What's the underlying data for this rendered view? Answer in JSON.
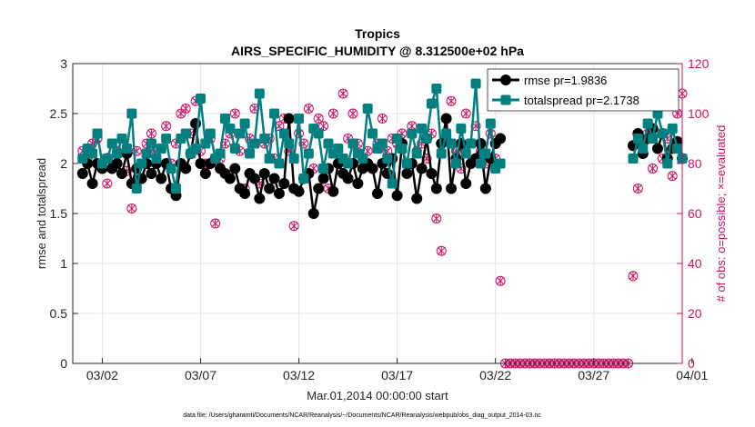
{
  "chart_data": {
    "type": "line",
    "title": "Tropics",
    "subtitle": "AIRS_SPECIFIC_HUMIDITY @ 8.312500e+02 hPa",
    "xlabel": "Mar.01,2014 00:00:00 start",
    "ylabel_left": "rmse and totalspread",
    "ylabel_right": "# of obs: o=possible; ×=evaluated",
    "footnote": "data file: /Users/gharamti/Documents/NCAR/Reanalysis/~/Documents/NCAR/Reanalysis/webpub/obs_diag_output_2014-03.nc",
    "xlim": [
      0.5,
      31.5
    ],
    "ylim_left": [
      0,
      3
    ],
    "ylim_right": [
      0,
      120
    ],
    "x_ticks": [
      {
        "x": 2,
        "label": "03/02"
      },
      {
        "x": 7,
        "label": "03/07"
      },
      {
        "x": 12,
        "label": "03/12"
      },
      {
        "x": 17,
        "label": "03/17"
      },
      {
        "x": 22,
        "label": "03/22"
      },
      {
        "x": 27,
        "label": "03/27"
      },
      {
        "x": 32,
        "label": "04/01"
      }
    ],
    "y_ticks_left": [
      "0",
      "0.5",
      "1",
      "1.5",
      "2",
      "2.5",
      "3"
    ],
    "y_ticks_right": [
      "0",
      "20",
      "40",
      "60",
      "80",
      "100",
      "120"
    ],
    "colors": {
      "rmse": "#000000",
      "totalspread": "#008080",
      "obs": "#cc1166",
      "grid": "#e6e6e6",
      "axis": "#262626"
    },
    "legend": {
      "position": "top-right",
      "entries": [
        "rmse pr=1.9836",
        "totalspread pr=2.1738"
      ]
    },
    "series": [
      {
        "name": "rmse",
        "segments": [
          {
            "x": [
              1.0,
              1.25,
              1.5,
              1.75,
              2.0,
              2.25,
              2.5,
              2.75,
              3.0,
              3.25,
              3.5,
              3.75,
              4.0,
              4.25,
              4.5,
              4.75,
              5.0,
              5.25,
              5.5,
              5.75,
              6.0,
              6.25,
              6.5,
              6.75,
              7.0,
              7.25,
              7.5,
              7.75,
              8.0,
              8.25,
              8.5,
              8.75,
              9.0,
              9.25,
              9.5,
              9.75,
              10.0,
              10.25,
              10.5,
              10.75,
              11.0,
              11.25,
              11.5,
              11.75,
              12.0,
              12.25,
              12.5,
              12.75,
              13.0,
              13.25,
              13.5,
              13.75,
              14.0,
              14.25,
              14.5,
              14.75,
              15.0,
              15.25,
              15.5,
              15.75,
              16.0,
              16.25,
              16.5,
              16.75,
              17.0,
              17.25,
              17.5,
              17.75,
              18.0,
              18.25,
              18.5,
              18.75,
              19.0,
              19.25,
              19.5,
              19.75,
              20.0,
              20.25,
              20.5,
              20.75,
              21.0,
              21.25,
              21.5,
              21.75,
              22.0,
              22.25
            ],
            "values": [
              1.9,
              2.0,
              1.8,
              2.0,
              1.95,
              2.05,
              1.95,
              2.0,
              1.9,
              2.1,
              1.8,
              1.95,
              1.85,
              2.0,
              1.9,
              2.0,
              1.85,
              2.0,
              1.75,
              1.68,
              2.0,
              1.95,
              2.1,
              2.4,
              2.0,
              1.9,
              2.0,
              2.05,
              1.95,
              1.9,
              1.85,
              1.95,
              1.75,
              1.7,
              1.9,
              1.85,
              1.65,
              1.9,
              1.75,
              1.85,
              1.7,
              1.8,
              2.45,
              1.75,
              1.72,
              1.85,
              1.9,
              1.5,
              1.75,
              1.85,
              1.95,
              1.72,
              2.0,
              1.9,
              1.85,
              2.0,
              1.8,
              1.95,
              2.0,
              1.95,
              1.7,
              2.0,
              1.9,
              2.05,
              1.68,
              2.2,
              1.9,
              2.0,
              1.65,
              1.95,
              2.25,
              1.9,
              1.75,
              2.2,
              2.45,
              1.75,
              2.05,
              2.2,
              1.8,
              2.0,
              2.05,
              2.2,
              1.75,
              2.05,
              2.2,
              2.25
            ]
          },
          {
            "x": [
              29.0,
              29.25,
              29.5,
              29.75,
              30.0,
              30.25,
              30.5,
              30.75,
              31.0,
              31.25,
              31.5
            ],
            "values": [
              2.18,
              2.3,
              2.1,
              2.25,
              2.35,
              2.15,
              2.3,
              2.05,
              2.15,
              2.22,
              2.05
            ]
          }
        ]
      },
      {
        "name": "totalspread",
        "segments": [
          {
            "x": [
              1.0,
              1.25,
              1.5,
              1.75,
              2.0,
              2.25,
              2.5,
              2.75,
              3.0,
              3.25,
              3.5,
              3.75,
              4.0,
              4.25,
              4.5,
              4.75,
              5.0,
              5.25,
              5.5,
              5.75,
              6.0,
              6.25,
              6.5,
              6.75,
              7.0,
              7.25,
              7.5,
              7.75,
              8.0,
              8.25,
              8.5,
              8.75,
              9.0,
              9.25,
              9.5,
              9.75,
              10.0,
              10.25,
              10.5,
              10.75,
              11.0,
              11.25,
              11.5,
              11.75,
              12.0,
              12.25,
              12.5,
              12.75,
              13.0,
              13.25,
              13.5,
              13.75,
              14.0,
              14.25,
              14.5,
              14.75,
              15.0,
              15.25,
              15.5,
              15.75,
              16.0,
              16.25,
              16.5,
              16.75,
              17.0,
              17.25,
              17.5,
              17.75,
              18.0,
              18.25,
              18.5,
              18.75,
              19.0,
              19.25,
              19.5,
              19.75,
              20.0,
              20.25,
              20.5,
              20.75,
              21.0,
              21.25,
              21.5,
              21.75,
              22.0,
              22.25
            ],
            "values": [
              2.05,
              2.15,
              2.1,
              2.3,
              2.0,
              2.05,
              2.2,
              2.1,
              2.25,
              2.15,
              2.5,
              1.75,
              2.0,
              2.1,
              2.2,
              2.05,
              2.15,
              2.25,
              1.95,
              1.75,
              2.25,
              2.3,
              2.1,
              2.15,
              2.65,
              2.2,
              2.3,
              2.05,
              2.1,
              2.45,
              2.35,
              2.15,
              2.3,
              2.4,
              2.1,
              2.2,
              2.7,
              2.25,
              2.05,
              2.5,
              2.0,
              2.3,
              2.2,
              2.05,
              2.45,
              1.85,
              2.1,
              2.35,
              2.3,
              1.95,
              2.2,
              2.1,
              2.15,
              2.05,
              2.0,
              2.2,
              2.1,
              2.05,
              2.55,
              2.3,
              2.15,
              2.2,
              2.05,
              1.8,
              2.25,
              2.15,
              2.0,
              2.3,
              2.1,
              2.35,
              2.25,
              2.6,
              2.75,
              2.1,
              2.3,
              2.2,
              2.0,
              2.35,
              2.1,
              2.2,
              2.8,
              2.0,
              2.1,
              2.4,
              1.95,
              2.0
            ]
          },
          {
            "x": [
              29.0,
              29.25,
              29.5,
              29.75,
              30.0,
              30.25,
              30.5,
              30.75,
              31.0,
              31.25,
              31.5
            ],
            "values": [
              2.05,
              2.25,
              2.15,
              2.4,
              2.25,
              2.5,
              2.3,
              2.0,
              2.35,
              2.15,
              2.05
            ]
          }
        ]
      },
      {
        "name": "obs_possible",
        "x": [
          1.0,
          1.25,
          1.5,
          1.75,
          2.0,
          2.25,
          2.5,
          2.75,
          3.0,
          3.25,
          3.5,
          3.75,
          4.0,
          4.25,
          4.5,
          4.75,
          5.0,
          5.25,
          5.5,
          5.75,
          6.0,
          6.25,
          6.5,
          6.75,
          7.0,
          7.25,
          7.5,
          7.75,
          8.0,
          8.25,
          8.5,
          8.75,
          9.0,
          9.25,
          9.5,
          9.75,
          10.0,
          10.25,
          10.5,
          10.75,
          11.0,
          11.25,
          11.5,
          11.75,
          12.0,
          12.25,
          12.5,
          12.75,
          13.0,
          13.25,
          13.5,
          13.75,
          14.0,
          14.25,
          14.5,
          14.75,
          15.0,
          15.25,
          15.5,
          15.75,
          16.0,
          16.25,
          16.5,
          16.75,
          17.0,
          17.25,
          17.5,
          17.75,
          18.0,
          18.25,
          18.5,
          18.75,
          19.0,
          19.25,
          19.5,
          19.75,
          20.0,
          20.25,
          20.5,
          20.75,
          21.0,
          21.25,
          21.5,
          21.75,
          22.0,
          22.25,
          22.5,
          22.75,
          23.0,
          23.25,
          23.5,
          23.75,
          24.0,
          24.25,
          24.5,
          24.75,
          25.0,
          25.25,
          25.5,
          25.75,
          26.0,
          26.25,
          26.5,
          26.75,
          27.0,
          27.25,
          27.5,
          27.75,
          28.0,
          28.25,
          28.5,
          28.75,
          29.0,
          29.25,
          29.5,
          29.75,
          30.0,
          30.25,
          30.5,
          30.75,
          31.0,
          31.25,
          31.5
        ],
        "values": [
          85,
          82,
          88,
          90,
          80,
          72,
          88,
          85,
          90,
          77,
          62,
          85,
          80,
          88,
          92,
          85,
          86,
          95,
          80,
          88,
          100,
          102,
          92,
          105,
          85,
          80,
          90,
          56,
          82,
          88,
          92,
          100,
          85,
          70,
          90,
          102,
          72,
          88,
          90,
          82,
          95,
          98,
          85,
          55,
          92,
          88,
          102,
          78,
          98,
          95,
          70,
          100,
          85,
          108,
          90,
          100,
          88,
          82,
          85,
          92,
          88,
          98,
          85,
          90,
          88,
          92,
          80,
          95,
          85,
          88,
          82,
          92,
          58,
          45,
          90,
          105,
          85,
          78,
          100,
          88,
          95,
          85,
          80,
          92,
          82,
          33,
          0,
          0,
          0,
          0,
          0,
          0,
          0,
          0,
          0,
          0,
          0,
          0,
          0,
          0,
          0,
          0,
          0,
          0,
          0,
          0,
          0,
          0,
          0,
          0,
          0,
          0,
          35,
          70,
          88,
          92,
          78,
          86,
          82,
          90,
          75,
          100,
          108
        ]
      },
      {
        "name": "obs_evaluated",
        "x": [
          1.0,
          1.25,
          1.5,
          1.75,
          2.0,
          2.25,
          2.5,
          2.75,
          3.0,
          3.25,
          3.5,
          3.75,
          4.0,
          4.25,
          4.5,
          4.75,
          5.0,
          5.25,
          5.5,
          5.75,
          6.0,
          6.25,
          6.5,
          6.75,
          7.0,
          7.25,
          7.5,
          7.75,
          8.0,
          8.25,
          8.5,
          8.75,
          9.0,
          9.25,
          9.5,
          9.75,
          10.0,
          10.25,
          10.5,
          10.75,
          11.0,
          11.25,
          11.5,
          11.75,
          12.0,
          12.25,
          12.5,
          12.75,
          13.0,
          13.25,
          13.5,
          13.75,
          14.0,
          14.25,
          14.5,
          14.75,
          15.0,
          15.25,
          15.5,
          15.75,
          16.0,
          16.25,
          16.5,
          16.75,
          17.0,
          17.25,
          17.5,
          17.75,
          18.0,
          18.25,
          18.5,
          18.75,
          19.0,
          19.25,
          19.5,
          19.75,
          20.0,
          20.25,
          20.5,
          20.75,
          21.0,
          21.25,
          21.5,
          21.75,
          22.0,
          22.25,
          22.5,
          22.75,
          23.0,
          23.25,
          23.5,
          23.75,
          24.0,
          24.25,
          24.5,
          24.75,
          25.0,
          25.25,
          25.5,
          25.75,
          26.0,
          26.25,
          26.5,
          26.75,
          27.0,
          27.25,
          27.5,
          27.75,
          28.0,
          28.25,
          28.5,
          28.75,
          29.0,
          29.25,
          29.5,
          29.75,
          30.0,
          30.25,
          30.5,
          30.75,
          31.0,
          31.25,
          31.5
        ],
        "values": [
          85,
          82,
          88,
          90,
          80,
          72,
          88,
          85,
          90,
          77,
          62,
          85,
          80,
          88,
          92,
          85,
          86,
          95,
          80,
          88,
          100,
          102,
          92,
          105,
          85,
          80,
          90,
          56,
          82,
          88,
          92,
          100,
          85,
          70,
          90,
          102,
          72,
          88,
          90,
          82,
          95,
          98,
          85,
          55,
          92,
          88,
          102,
          78,
          98,
          95,
          70,
          100,
          85,
          108,
          90,
          100,
          88,
          82,
          85,
          92,
          88,
          98,
          85,
          90,
          88,
          92,
          80,
          95,
          85,
          88,
          82,
          92,
          58,
          45,
          90,
          105,
          85,
          78,
          100,
          88,
          95,
          85,
          80,
          92,
          82,
          33,
          0,
          0,
          0,
          0,
          0,
          0,
          0,
          0,
          0,
          0,
          0,
          0,
          0,
          0,
          0,
          0,
          0,
          0,
          0,
          0,
          0,
          0,
          0,
          0,
          0,
          0,
          35,
          70,
          88,
          92,
          78,
          86,
          82,
          90,
          75,
          100,
          108
        ]
      }
    ]
  }
}
